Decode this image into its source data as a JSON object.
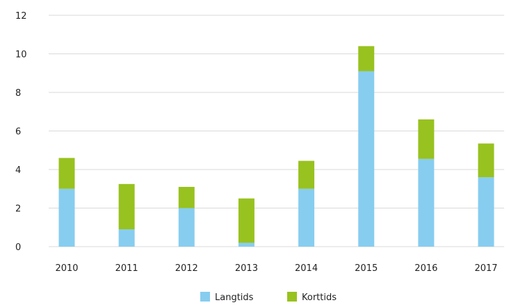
{
  "chart_data": {
    "type": "bar",
    "stacked": true,
    "categories": [
      "2010",
      "2011",
      "2012",
      "2013",
      "2014",
      "2015",
      "2016",
      "2017"
    ],
    "series": [
      {
        "name": "Langtids",
        "color": "#87cdf0",
        "values": [
          3.0,
          0.9,
          2.0,
          0.2,
          3.0,
          9.1,
          4.55,
          3.6
        ]
      },
      {
        "name": "Korttids",
        "color": "#98c21f",
        "values": [
          1.6,
          2.35,
          1.1,
          2.3,
          1.45,
          1.3,
          2.05,
          1.75
        ]
      }
    ],
    "ylim": [
      0,
      12
    ],
    "yticks": [
      "0",
      "2",
      "4",
      "6",
      "8",
      "10",
      "12"
    ],
    "grid": true,
    "legend_position": "bottom"
  }
}
